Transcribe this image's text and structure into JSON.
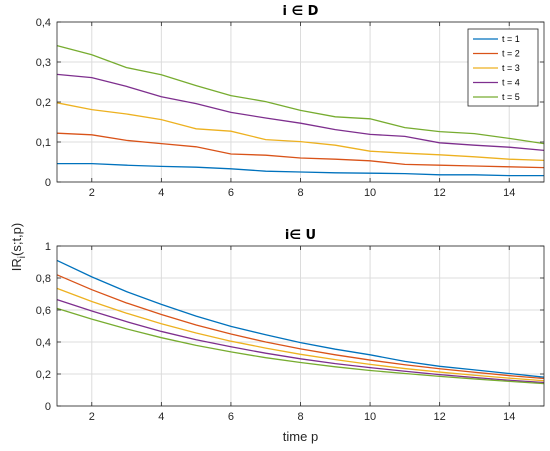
{
  "ylabel": "IR_i(s;t,p)",
  "ylabel_main": "IR",
  "ylabel_sub": "i",
  "ylabel_rest": "(s;t,p)",
  "colors": [
    "#0072BD",
    "#D95319",
    "#EDB120",
    "#7E2F8E",
    "#77AC30"
  ],
  "chart_data": [
    {
      "type": "line",
      "title": "i ∈ D",
      "xlabel": "",
      "xlim": [
        1,
        15
      ],
      "ylim": [
        0,
        0.4
      ],
      "yticks": [
        0,
        0.1,
        0.2,
        0.3,
        0.4
      ],
      "ytick_labels": [
        "0",
        "0,1",
        "0,2",
        "0,3",
        "0,4"
      ],
      "xticks": [
        2,
        4,
        6,
        8,
        10,
        12,
        14
      ],
      "grid": true,
      "legend": "top-right",
      "x": [
        1,
        2,
        3,
        4,
        5,
        6,
        7,
        8,
        9,
        10,
        11,
        12,
        13,
        14,
        15
      ],
      "series": [
        {
          "name": "t = 1",
          "values": [
            0.046,
            0.046,
            0.042,
            0.039,
            0.037,
            0.033,
            0.027,
            0.025,
            0.023,
            0.022,
            0.021,
            0.018,
            0.018,
            0.016,
            0.016
          ]
        },
        {
          "name": "t = 2",
          "values": [
            0.122,
            0.118,
            0.104,
            0.096,
            0.088,
            0.07,
            0.067,
            0.06,
            0.057,
            0.053,
            0.044,
            0.042,
            0.04,
            0.038,
            0.036
          ]
        },
        {
          "name": "t = 3",
          "values": [
            0.198,
            0.181,
            0.17,
            0.156,
            0.133,
            0.127,
            0.106,
            0.101,
            0.092,
            0.077,
            0.072,
            0.068,
            0.063,
            0.057,
            0.054
          ]
        },
        {
          "name": "t = 4",
          "values": [
            0.269,
            0.261,
            0.239,
            0.213,
            0.196,
            0.174,
            0.16,
            0.147,
            0.131,
            0.119,
            0.114,
            0.098,
            0.092,
            0.087,
            0.079
          ]
        },
        {
          "name": "t = 5",
          "values": [
            0.341,
            0.318,
            0.286,
            0.268,
            0.241,
            0.216,
            0.201,
            0.179,
            0.163,
            0.158,
            0.136,
            0.126,
            0.121,
            0.109,
            0.096
          ]
        }
      ]
    },
    {
      "type": "line",
      "title": "i∈ U",
      "xlabel": "time p",
      "xlim": [
        1,
        15
      ],
      "ylim": [
        0,
        1
      ],
      "yticks": [
        0,
        0.2,
        0.4,
        0.6,
        0.8,
        1
      ],
      "ytick_labels": [
        "0",
        "0,2",
        "0,4",
        "0,6",
        "0,8",
        "1"
      ],
      "xticks": [
        2,
        4,
        6,
        8,
        10,
        12,
        14
      ],
      "grid": true,
      "legend": "none",
      "x": [
        1,
        2,
        3,
        4,
        5,
        6,
        7,
        8,
        9,
        10,
        11,
        12,
        13,
        14,
        15
      ],
      "series": [
        {
          "name": "t = 1",
          "values": [
            0.91,
            0.807,
            0.715,
            0.635,
            0.562,
            0.498,
            0.445,
            0.396,
            0.355,
            0.32,
            0.279,
            0.248,
            0.226,
            0.203,
            0.18
          ]
        },
        {
          "name": "t = 2",
          "values": [
            0.82,
            0.727,
            0.644,
            0.572,
            0.506,
            0.45,
            0.4,
            0.357,
            0.32,
            0.287,
            0.258,
            0.233,
            0.211,
            0.19,
            0.172
          ]
        },
        {
          "name": "t = 3",
          "values": [
            0.735,
            0.653,
            0.58,
            0.514,
            0.456,
            0.405,
            0.362,
            0.323,
            0.29,
            0.26,
            0.234,
            0.212,
            0.192,
            0.174,
            0.158
          ]
        },
        {
          "name": "t = 4",
          "values": [
            0.665,
            0.594,
            0.527,
            0.466,
            0.414,
            0.37,
            0.33,
            0.295,
            0.265,
            0.24,
            0.217,
            0.196,
            0.178,
            0.161,
            0.147
          ]
        },
        {
          "name": "t = 5",
          "values": [
            0.61,
            0.543,
            0.482,
            0.427,
            0.379,
            0.338,
            0.302,
            0.272,
            0.245,
            0.222,
            0.203,
            0.185,
            0.169,
            0.154,
            0.14
          ]
        }
      ]
    }
  ]
}
